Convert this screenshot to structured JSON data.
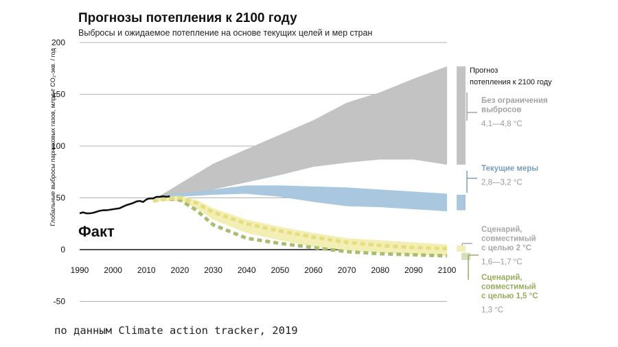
{
  "title": "Прогнозы потепления к 2100 году",
  "subtitle": "Выбросы и ожидаемое потепление на основе текущих целей и мер стран",
  "source": "по данным Climate action tracker, 2019",
  "chart_data": {
    "type": "area",
    "ylabel": "Глобальные выбросы парниковых газов, млрд т CO₂-экв. / год",
    "x_ticks": [
      1990,
      2000,
      2010,
      2020,
      2030,
      2040,
      2050,
      2060,
      2070,
      2080,
      2090,
      2100
    ],
    "y_ticks": [
      200,
      150,
      100,
      50,
      0,
      -50
    ],
    "xlim": [
      1990,
      2100
    ],
    "ylim": [
      -50,
      200
    ],
    "grid": "horizontal",
    "colors": {
      "no_policy": "#c4c3c3",
      "current": "#a9c7df",
      "target2": "#f2eeb4",
      "target2_line": "#e5de80",
      "target15_line": "#a8bd70",
      "history": "#111111"
    },
    "fact_label": "Факт",
    "legend_title_lines": [
      "Прогноз",
      "потепления к 2100 году"
    ],
    "history": {
      "x": [
        1990,
        1991,
        1992,
        1993,
        1994,
        1995,
        1996,
        1997,
        1998,
        1999,
        2000,
        2001,
        2002,
        2003,
        2004,
        2005,
        2006,
        2007,
        2008,
        2009,
        2010,
        2011,
        2012,
        2013,
        2014,
        2015,
        2016,
        2017
      ],
      "y": [
        35,
        36,
        35,
        35,
        35.5,
        36.5,
        37.5,
        38,
        38,
        38.5,
        39,
        39.5,
        40,
        41.5,
        43,
        44,
        45,
        46.5,
        47,
        46,
        48.5,
        49.5,
        49.5,
        51,
        51,
        51.5,
        51,
        51.5
      ]
    },
    "series": [
      {
        "key": "no_policy",
        "name_lines": [
          "Без ограничения",
          "выбросов"
        ],
        "range_label": "4,1—4,8 °C",
        "x": [
          2014,
          2030,
          2040,
          2050,
          2060,
          2070,
          2080,
          2090,
          2100
        ],
        "low": [
          50,
          58,
          65,
          72,
          80,
          84,
          87,
          87,
          82
        ],
        "high": [
          52,
          83,
          97,
          111,
          125,
          142,
          152,
          165,
          177
        ],
        "bar": [
          82,
          177
        ]
      },
      {
        "key": "current",
        "name_lines": [
          "Текущие меры"
        ],
        "range_label": "2,8—3,2 °C",
        "x": [
          2014,
          2030,
          2040,
          2050,
          2060,
          2070,
          2080,
          2090,
          2100
        ],
        "low": [
          50,
          53,
          54,
          51,
          46,
          42,
          41,
          39,
          37
        ],
        "high": [
          52,
          58,
          62,
          62,
          61,
          60,
          58,
          56,
          54
        ],
        "bar": [
          38,
          53
        ]
      },
      {
        "key": "target2",
        "name_lines": [
          "Сценарий,",
          "совместимый",
          "с целью 2 °C"
        ],
        "range_label": "1,6—1,7 °C",
        "x": [
          2012,
          2016,
          2020,
          2025,
          2030,
          2040,
          2050,
          2060,
          2070,
          2080,
          2090,
          2100
        ],
        "low": [
          46,
          47,
          47,
          40,
          29,
          16,
          9,
          3,
          -1,
          -3,
          -5,
          -6
        ],
        "high": [
          48,
          51,
          52,
          48,
          40,
          29,
          22,
          16,
          11,
          9,
          7,
          5
        ],
        "mid": [
          47,
          49,
          50,
          45,
          36,
          25,
          18,
          12,
          7,
          4,
          2,
          1
        ],
        "bar": [
          -2,
          4
        ]
      },
      {
        "key": "target15",
        "name_lines": [
          "Сценарий,",
          "совместимый",
          "с целью 1,5 °C"
        ],
        "range_label": "1,3 °C",
        "x": [
          2012,
          2016,
          2020,
          2025,
          2030,
          2040,
          2050,
          2060,
          2070,
          2080,
          2090,
          2100
        ],
        "mid": [
          47,
          49,
          48,
          38,
          24,
          11,
          6,
          2,
          -2,
          -4,
          -5,
          -6
        ],
        "bar": [
          -10,
          -3
        ]
      }
    ]
  }
}
